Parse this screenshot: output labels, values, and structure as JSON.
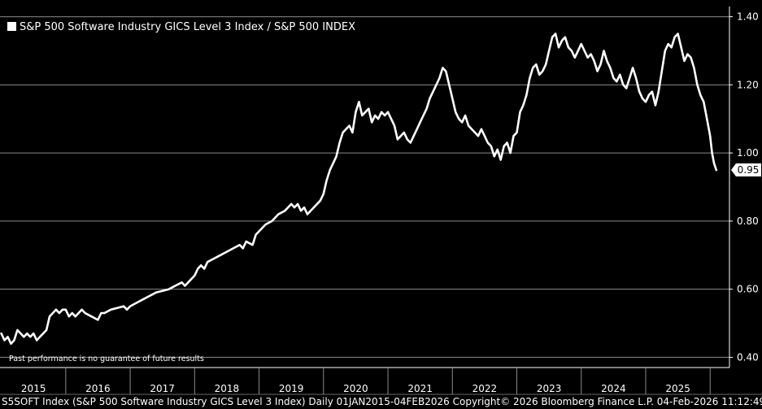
{
  "chart_data": {
    "type": "line",
    "title": "S&P 500 Software Industry GICS Level 3 Index / S&P 500 INDEX",
    "series": [
      {
        "name": "S&P 500 Software Industry GICS Level 3 Index / S&P 500 INDEX",
        "color": "#ffffff",
        "points": [
          [
            2015.0,
            0.47
          ],
          [
            2015.05,
            0.45
          ],
          [
            2015.1,
            0.46
          ],
          [
            2015.15,
            0.44
          ],
          [
            2015.2,
            0.45
          ],
          [
            2015.25,
            0.48
          ],
          [
            2015.3,
            0.47
          ],
          [
            2015.35,
            0.46
          ],
          [
            2015.4,
            0.47
          ],
          [
            2015.45,
            0.46
          ],
          [
            2015.5,
            0.47
          ],
          [
            2015.55,
            0.45
          ],
          [
            2015.6,
            0.46
          ],
          [
            2015.65,
            0.47
          ],
          [
            2015.7,
            0.48
          ],
          [
            2015.75,
            0.52
          ],
          [
            2015.8,
            0.53
          ],
          [
            2015.85,
            0.54
          ],
          [
            2015.9,
            0.53
          ],
          [
            2015.95,
            0.54
          ],
          [
            2016.0,
            0.54
          ],
          [
            2016.05,
            0.52
          ],
          [
            2016.1,
            0.53
          ],
          [
            2016.15,
            0.52
          ],
          [
            2016.2,
            0.53
          ],
          [
            2016.25,
            0.54
          ],
          [
            2016.3,
            0.53
          ],
          [
            2016.4,
            0.52
          ],
          [
            2016.5,
            0.51
          ],
          [
            2016.55,
            0.53
          ],
          [
            2016.6,
            0.53
          ],
          [
            2016.7,
            0.54
          ],
          [
            2016.8,
            0.545
          ],
          [
            2016.9,
            0.55
          ],
          [
            2016.95,
            0.54
          ],
          [
            2017.0,
            0.55
          ],
          [
            2017.1,
            0.56
          ],
          [
            2017.2,
            0.57
          ],
          [
            2017.3,
            0.58
          ],
          [
            2017.4,
            0.59
          ],
          [
            2017.5,
            0.595
          ],
          [
            2017.6,
            0.6
          ],
          [
            2017.7,
            0.61
          ],
          [
            2017.8,
            0.62
          ],
          [
            2017.85,
            0.61
          ],
          [
            2017.9,
            0.62
          ],
          [
            2017.95,
            0.63
          ],
          [
            2018.0,
            0.64
          ],
          [
            2018.05,
            0.66
          ],
          [
            2018.1,
            0.67
          ],
          [
            2018.15,
            0.66
          ],
          [
            2018.2,
            0.68
          ],
          [
            2018.3,
            0.69
          ],
          [
            2018.4,
            0.7
          ],
          [
            2018.5,
            0.71
          ],
          [
            2018.6,
            0.72
          ],
          [
            2018.7,
            0.73
          ],
          [
            2018.75,
            0.72
          ],
          [
            2018.8,
            0.74
          ],
          [
            2018.9,
            0.73
          ],
          [
            2018.95,
            0.76
          ],
          [
            2019.0,
            0.77
          ],
          [
            2019.1,
            0.79
          ],
          [
            2019.2,
            0.8
          ],
          [
            2019.3,
            0.82
          ],
          [
            2019.4,
            0.83
          ],
          [
            2019.5,
            0.85
          ],
          [
            2019.55,
            0.84
          ],
          [
            2019.6,
            0.85
          ],
          [
            2019.65,
            0.83
          ],
          [
            2019.7,
            0.84
          ],
          [
            2019.75,
            0.82
          ],
          [
            2019.8,
            0.83
          ],
          [
            2019.85,
            0.84
          ],
          [
            2019.9,
            0.85
          ],
          [
            2019.95,
            0.86
          ],
          [
            2020.0,
            0.88
          ],
          [
            2020.05,
            0.92
          ],
          [
            2020.1,
            0.95
          ],
          [
            2020.15,
            0.97
          ],
          [
            2020.2,
            0.99
          ],
          [
            2020.25,
            1.03
          ],
          [
            2020.3,
            1.06
          ],
          [
            2020.35,
            1.07
          ],
          [
            2020.4,
            1.08
          ],
          [
            2020.45,
            1.06
          ],
          [
            2020.5,
            1.12
          ],
          [
            2020.55,
            1.15
          ],
          [
            2020.6,
            1.11
          ],
          [
            2020.65,
            1.12
          ],
          [
            2020.7,
            1.13
          ],
          [
            2020.75,
            1.09
          ],
          [
            2020.8,
            1.11
          ],
          [
            2020.85,
            1.1
          ],
          [
            2020.9,
            1.12
          ],
          [
            2020.95,
            1.11
          ],
          [
            2021.0,
            1.12
          ],
          [
            2021.05,
            1.1
          ],
          [
            2021.1,
            1.08
          ],
          [
            2021.15,
            1.04
          ],
          [
            2021.2,
            1.05
          ],
          [
            2021.25,
            1.06
          ],
          [
            2021.3,
            1.04
          ],
          [
            2021.35,
            1.03
          ],
          [
            2021.4,
            1.05
          ],
          [
            2021.45,
            1.07
          ],
          [
            2021.5,
            1.09
          ],
          [
            2021.55,
            1.11
          ],
          [
            2021.6,
            1.13
          ],
          [
            2021.65,
            1.16
          ],
          [
            2021.7,
            1.18
          ],
          [
            2021.75,
            1.2
          ],
          [
            2021.8,
            1.22
          ],
          [
            2021.85,
            1.25
          ],
          [
            2021.9,
            1.24
          ],
          [
            2021.95,
            1.2
          ],
          [
            2022.0,
            1.16
          ],
          [
            2022.05,
            1.12
          ],
          [
            2022.1,
            1.1
          ],
          [
            2022.15,
            1.09
          ],
          [
            2022.2,
            1.11
          ],
          [
            2022.25,
            1.08
          ],
          [
            2022.3,
            1.07
          ],
          [
            2022.35,
            1.06
          ],
          [
            2022.4,
            1.05
          ],
          [
            2022.45,
            1.07
          ],
          [
            2022.5,
            1.05
          ],
          [
            2022.55,
            1.03
          ],
          [
            2022.6,
            1.02
          ],
          [
            2022.65,
            0.99
          ],
          [
            2022.7,
            1.01
          ],
          [
            2022.75,
            0.98
          ],
          [
            2022.8,
            1.02
          ],
          [
            2022.85,
            1.03
          ],
          [
            2022.9,
            1.0
          ],
          [
            2022.95,
            1.05
          ],
          [
            2023.0,
            1.06
          ],
          [
            2023.05,
            1.12
          ],
          [
            2023.1,
            1.14
          ],
          [
            2023.15,
            1.17
          ],
          [
            2023.2,
            1.22
          ],
          [
            2023.25,
            1.25
          ],
          [
            2023.3,
            1.26
          ],
          [
            2023.35,
            1.23
          ],
          [
            2023.4,
            1.24
          ],
          [
            2023.45,
            1.26
          ],
          [
            2023.5,
            1.3
          ],
          [
            2023.55,
            1.34
          ],
          [
            2023.6,
            1.35
          ],
          [
            2023.65,
            1.31
          ],
          [
            2023.7,
            1.33
          ],
          [
            2023.75,
            1.34
          ],
          [
            2023.8,
            1.31
          ],
          [
            2023.85,
            1.3
          ],
          [
            2023.9,
            1.28
          ],
          [
            2023.95,
            1.3
          ],
          [
            2024.0,
            1.32
          ],
          [
            2024.05,
            1.3
          ],
          [
            2024.1,
            1.28
          ],
          [
            2024.15,
            1.29
          ],
          [
            2024.2,
            1.27
          ],
          [
            2024.25,
            1.24
          ],
          [
            2024.3,
            1.26
          ],
          [
            2024.35,
            1.3
          ],
          [
            2024.4,
            1.27
          ],
          [
            2024.45,
            1.25
          ],
          [
            2024.5,
            1.22
          ],
          [
            2024.55,
            1.21
          ],
          [
            2024.6,
            1.23
          ],
          [
            2024.65,
            1.2
          ],
          [
            2024.7,
            1.19
          ],
          [
            2024.75,
            1.22
          ],
          [
            2024.8,
            1.25
          ],
          [
            2024.85,
            1.22
          ],
          [
            2024.9,
            1.18
          ],
          [
            2024.95,
            1.16
          ],
          [
            2025.0,
            1.15
          ],
          [
            2025.05,
            1.17
          ],
          [
            2025.1,
            1.18
          ],
          [
            2025.15,
            1.14
          ],
          [
            2025.2,
            1.18
          ],
          [
            2025.25,
            1.24
          ],
          [
            2025.3,
            1.3
          ],
          [
            2025.35,
            1.32
          ],
          [
            2025.4,
            1.31
          ],
          [
            2025.45,
            1.34
          ],
          [
            2025.5,
            1.35
          ],
          [
            2025.55,
            1.31
          ],
          [
            2025.6,
            1.27
          ],
          [
            2025.65,
            1.29
          ],
          [
            2025.7,
            1.28
          ],
          [
            2025.75,
            1.25
          ],
          [
            2025.8,
            1.2
          ],
          [
            2025.85,
            1.17
          ],
          [
            2025.9,
            1.15
          ],
          [
            2025.95,
            1.1
          ],
          [
            2026.0,
            1.05
          ],
          [
            2026.03,
            1.0
          ],
          [
            2026.06,
            0.97
          ],
          [
            2026.095,
            0.95
          ]
        ]
      }
    ],
    "xlim": [
      2014.98,
      2026.3
    ],
    "ylim": [
      0.37,
      1.43
    ],
    "x_tick_labels": [
      "2015",
      "2016",
      "2017",
      "2018",
      "2019",
      "2020",
      "2021",
      "2022",
      "2023",
      "2024",
      "2025"
    ],
    "y_ticks": [
      0.4,
      0.6,
      0.8,
      1.0,
      1.2,
      1.4
    ],
    "y_tick_labels": [
      "0.40",
      "0.60",
      "0.80",
      "1.00",
      "1.20",
      "1.40"
    ],
    "y_axis_side": "right",
    "grid": true,
    "last_value": 0.95,
    "last_value_label": "0.95",
    "legend": "S&P 500 Software Industry GICS Level 3 Index / S&P 500 INDEX",
    "legend_position": "top-left",
    "annotation": "Past performance is no guarantee of future results",
    "footer": "S5SOFT Index (S&P 500 Software Industry GICS Level 3 Index) Daily 01JAN2015-04FEB2026  Copyright© 2026 Bloomberg Finance L.P.  04-Feb-2026 11:12:49"
  }
}
